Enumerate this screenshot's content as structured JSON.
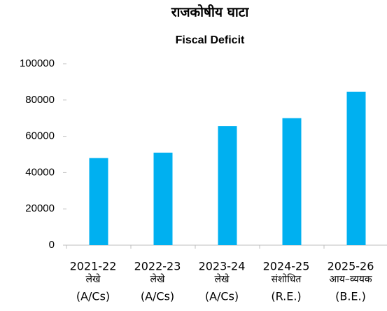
{
  "chart_data": {
    "type": "bar",
    "title": "राजकोषीय घाटा",
    "subtitle": "Fiscal Deficit",
    "categories": [
      [
        "2021-22",
        "लेखे",
        "(A/Cs)"
      ],
      [
        "2022-23",
        "लेखे",
        "(A/Cs)"
      ],
      [
        "2023-24",
        "लेखे",
        "(A/Cs)"
      ],
      [
        "2024-25",
        "संशोधित",
        "(R.E.)"
      ],
      [
        "2025-26",
        "आय–व्ययक",
        "(B.E.)"
      ]
    ],
    "values": [
      48000,
      51000,
      65600,
      70000,
      84600
    ],
    "color": "#00b0f0",
    "ylim": [
      0,
      100000
    ],
    "yticks": [
      0,
      20000,
      40000,
      60000,
      80000,
      100000
    ],
    "grid": false
  }
}
